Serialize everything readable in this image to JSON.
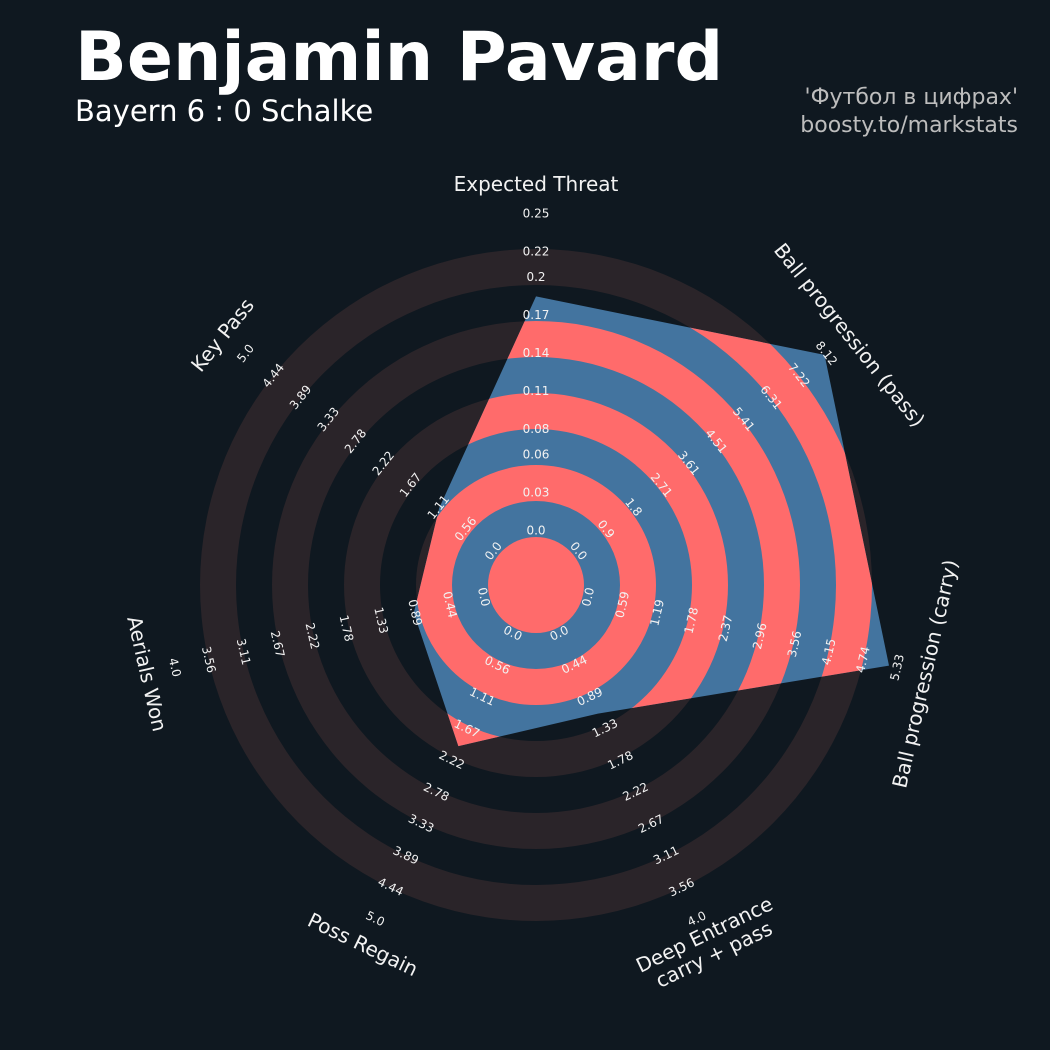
{
  "chart_data": {
    "type": "radar",
    "title": "Benjamin Pavard",
    "subtitle": "Bayern 6 : 0 Schalke",
    "annotations": [
      "'Футбол в цифрах'",
      "boosty.to/markstats"
    ],
    "colors": {
      "background": "#0f1820",
      "ring": "#2a2429",
      "inner_ring": "#ff6b6b",
      "fill": "#43749f"
    },
    "axes": [
      {
        "label_lines": [
          "Expected Threat"
        ],
        "lim": [
          0,
          0.25
        ],
        "ticks": [
          {
            "value": 0,
            "label": "0.0"
          },
          0.03,
          0.06,
          0.08,
          0.11,
          0.14,
          0.17,
          0.2,
          0.22,
          0.25
        ]
      },
      {
        "label_lines": [
          "Ball progression (pass)"
        ],
        "lim": [
          0,
          8.12
        ],
        "ticks": [
          {
            "value": 0,
            "label": "0.0"
          },
          0.9,
          1.8,
          2.71,
          3.61,
          4.51,
          5.41,
          6.31,
          7.22,
          8.12
        ]
      },
      {
        "label_lines": [
          "Ball progression (carry)"
        ],
        "lim": [
          0,
          5.33
        ],
        "ticks": [
          {
            "value": 0,
            "label": "0.0"
          },
          0.59,
          1.19,
          1.78,
          2.37,
          2.96,
          3.56,
          4.15,
          4.74,
          5.33
        ]
      },
      {
        "label_lines": [
          "Deep Entrance",
          "carry + pass"
        ],
        "lim": [
          0,
          4
        ],
        "ticks": [
          {
            "value": 0,
            "label": "0.0"
          },
          0.44,
          0.89,
          1.33,
          1.78,
          2.22,
          2.67,
          3.11,
          3.56,
          {
            "value": 4,
            "label": "4.0"
          }
        ]
      },
      {
        "label_lines": [
          "Poss Regain"
        ],
        "lim": [
          0,
          5
        ],
        "ticks": [
          {
            "value": 0,
            "label": "0.0"
          },
          0.56,
          1.11,
          1.67,
          2.22,
          2.78,
          3.33,
          3.89,
          4.44,
          {
            "value": 5,
            "label": "5.0"
          }
        ]
      },
      {
        "label_lines": [
          "Aerials Won"
        ],
        "lim": [
          0,
          4
        ],
        "ticks": [
          {
            "value": 0,
            "label": "0.0"
          },
          0.44,
          0.89,
          1.33,
          1.78,
          2.22,
          2.67,
          3.11,
          3.56,
          {
            "value": 4,
            "label": "4.0"
          }
        ]
      },
      {
        "label_lines": [
          "Key Pass"
        ],
        "lim": [
          0,
          5
        ],
        "ticks": [
          {
            "value": 0,
            "label": "0.0"
          },
          0.56,
          1.11,
          1.67,
          2.22,
          2.78,
          3.33,
          3.89,
          4.44,
          {
            "value": 5,
            "label": "5.0"
          }
        ]
      }
    ],
    "series": [
      {
        "values": [
          0.185,
          8.07,
          5.18,
          1.12,
          1.97,
          0.9,
          1.1
        ]
      }
    ]
  }
}
